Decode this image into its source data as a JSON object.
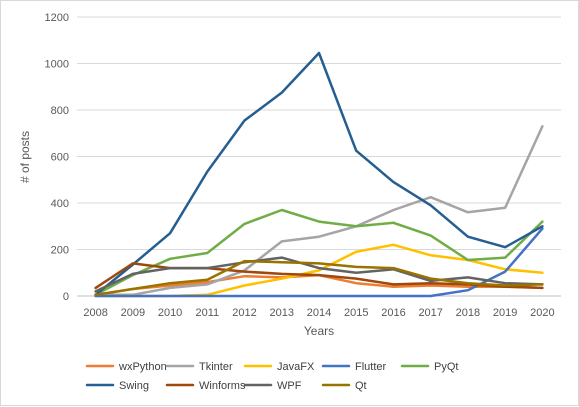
{
  "chart_data": {
    "type": "line",
    "title": "",
    "xlabel": "Years",
    "ylabel": "# of posts",
    "x": [
      "2008",
      "2009",
      "2010",
      "2011",
      "2012",
      "2013",
      "2014",
      "2015",
      "2016",
      "2017",
      "2018",
      "2019",
      "2020"
    ],
    "ylim": [
      0,
      1200
    ],
    "yticks": [
      "0",
      "200",
      "400",
      "600",
      "800",
      "1000",
      "1200"
    ],
    "grid": "horizontal",
    "legend_position": "bottom",
    "series": [
      {
        "name": "wxPython",
        "color": "#ED7D31",
        "values": [
          5,
          30,
          45,
          60,
          85,
          80,
          90,
          55,
          40,
          45,
          40,
          40,
          35
        ]
      },
      {
        "name": "Tkinter",
        "color": "#A5A5A5",
        "values": [
          5,
          5,
          35,
          50,
          110,
          235,
          255,
          300,
          370,
          425,
          360,
          380,
          730
        ]
      },
      {
        "name": "JavaFX",
        "color": "#FFC000",
        "values": [
          0,
          0,
          0,
          5,
          45,
          75,
          110,
          190,
          220,
          175,
          155,
          115,
          100
        ]
      },
      {
        "name": "Flutter",
        "color": "#4472C4",
        "values": [
          0,
          0,
          0,
          0,
          0,
          0,
          0,
          0,
          0,
          0,
          25,
          105,
          290
        ]
      },
      {
        "name": "PyQt",
        "color": "#70AD47",
        "values": [
          5,
          90,
          160,
          185,
          310,
          370,
          320,
          300,
          315,
          260,
          155,
          165,
          320
        ]
      },
      {
        "name": "Swing",
        "color": "#255E91",
        "values": [
          5,
          135,
          270,
          535,
          755,
          875,
          1045,
          625,
          490,
          390,
          255,
          210,
          300
        ]
      },
      {
        "name": "Winforms",
        "color": "#9E480E",
        "values": [
          35,
          140,
          120,
          120,
          105,
          95,
          90,
          75,
          50,
          55,
          50,
          40,
          35
        ]
      },
      {
        "name": "WPF",
        "color": "#636363",
        "values": [
          20,
          95,
          120,
          120,
          145,
          165,
          120,
          100,
          115,
          65,
          80,
          55,
          50
        ]
      },
      {
        "name": "Qt",
        "color": "#997300",
        "values": [
          5,
          30,
          55,
          70,
          150,
          145,
          140,
          125,
          120,
          75,
          55,
          45,
          50
        ]
      }
    ]
  }
}
